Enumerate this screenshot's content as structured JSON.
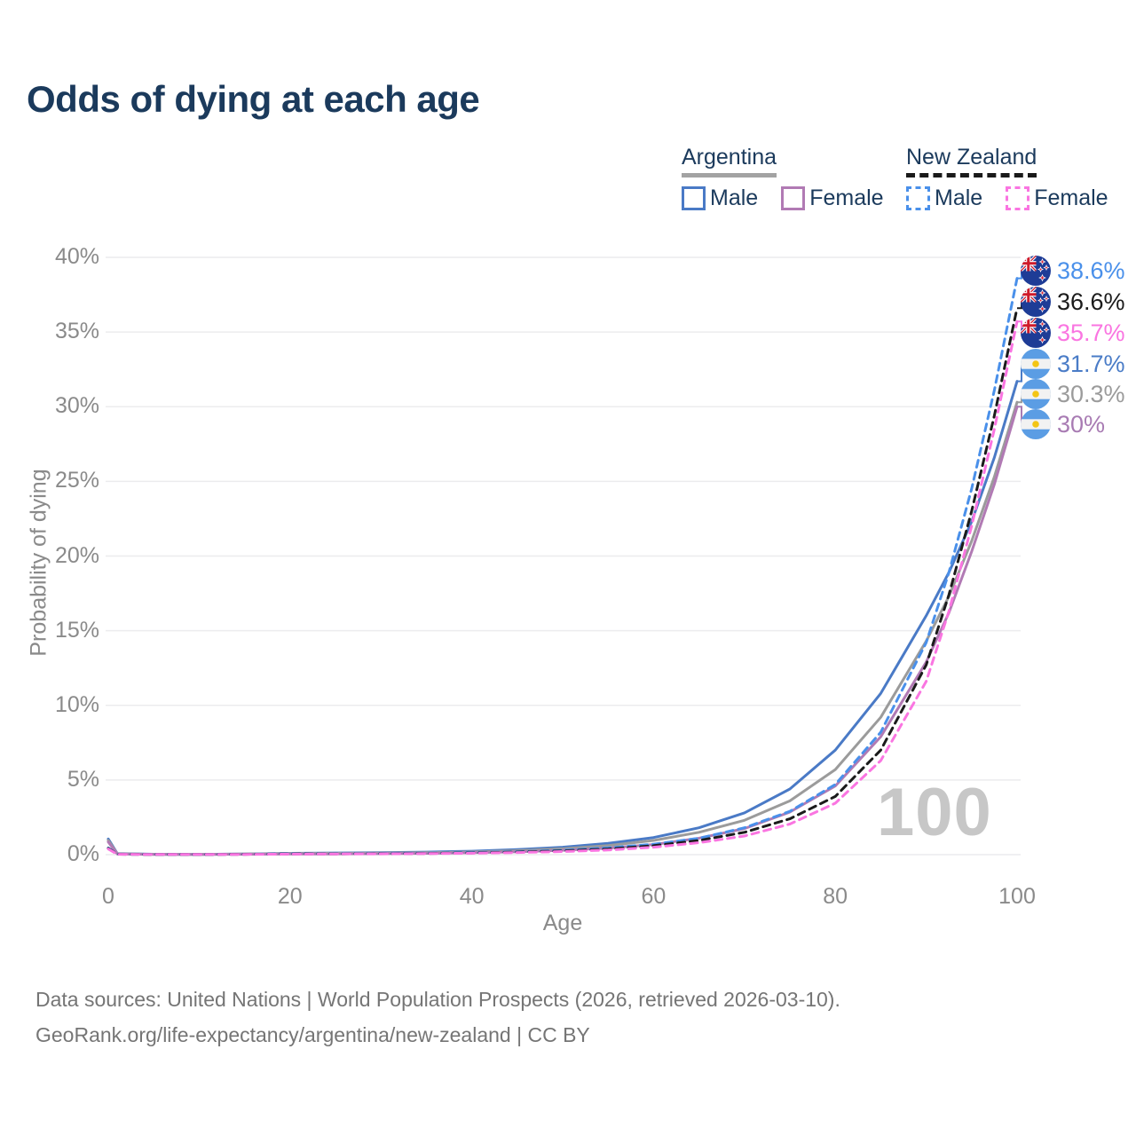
{
  "title": "Odds of dying at each age",
  "colors": {
    "title_navy": "#1b3a5c",
    "axis_gray": "#8a8a8a",
    "grid_gray": "#ececee",
    "footer_gray": "#757575",
    "watermark_gray": "#c7c7c7",
    "argentina_underline": "#a3a3a3",
    "new_zealand_underline": "#1a1a1a"
  },
  "legend": {
    "groups": [
      {
        "label": "Argentina",
        "line_style": "solid",
        "line_color": "#a3a3a3",
        "items": [
          {
            "label": "Male",
            "color": "#4a7ac6",
            "dash": false
          },
          {
            "label": "Female",
            "color": "#b17ab4",
            "dash": false
          }
        ]
      },
      {
        "label": "New Zealand",
        "line_style": "dashed",
        "line_color": "#1a1a1a",
        "items": [
          {
            "label": "Male",
            "color": "#4a90ea",
            "dash": true
          },
          {
            "label": "Female",
            "color": "#fa75e1",
            "dash": true
          }
        ]
      }
    ]
  },
  "chart_data": {
    "type": "line",
    "title": "Odds of dying at each age",
    "xlabel": "Age",
    "ylabel": "Probability of dying",
    "xlim": [
      0,
      100
    ],
    "ylim": [
      0,
      40
    ],
    "grid": "horizontal-only",
    "watermark": "100",
    "xticks": [
      0,
      20,
      40,
      60,
      80,
      100
    ],
    "ytick_labels": [
      "0%",
      "5%",
      "10%",
      "15%",
      "20%",
      "25%",
      "30%",
      "35%",
      "40%"
    ],
    "ages": [
      0,
      1,
      5,
      10,
      15,
      20,
      25,
      30,
      35,
      40,
      45,
      50,
      55,
      60,
      65,
      70,
      75,
      80,
      85,
      90,
      92.5,
      95,
      97.5,
      100
    ],
    "series": [
      {
        "name": "Argentina Male",
        "country": "Argentina",
        "sex": "Male",
        "color": "#4a7ac6",
        "dash": false,
        "values": [
          1.05,
          0.07,
          0.03,
          0.02,
          0.05,
          0.09,
          0.11,
          0.13,
          0.17,
          0.23,
          0.34,
          0.5,
          0.76,
          1.15,
          1.8,
          2.8,
          4.4,
          7.0,
          10.8,
          16.0,
          18.9,
          22.3,
          26.6,
          31.7
        ]
      },
      {
        "name": "Argentina Both sexes",
        "country": "Argentina",
        "sex": "Both",
        "color": "#9b9b9b",
        "dash": false,
        "values": [
          0.95,
          0.06,
          0.025,
          0.018,
          0.04,
          0.07,
          0.09,
          0.1,
          0.13,
          0.18,
          0.27,
          0.4,
          0.61,
          0.95,
          1.5,
          2.3,
          3.6,
          5.7,
          9.2,
          14.3,
          17.3,
          21.0,
          25.3,
          30.3
        ]
      },
      {
        "name": "Argentina Female",
        "country": "Argentina",
        "sex": "Female",
        "color": "#b17ab4",
        "dash": false,
        "values": [
          0.85,
          0.05,
          0.02,
          0.015,
          0.025,
          0.04,
          0.05,
          0.065,
          0.09,
          0.13,
          0.19,
          0.29,
          0.44,
          0.68,
          1.1,
          1.75,
          2.85,
          4.6,
          7.9,
          12.9,
          16.2,
          20.3,
          24.8,
          30.0
        ]
      },
      {
        "name": "New Zealand Male",
        "country": "New Zealand",
        "sex": "Male",
        "color": "#4a90ea",
        "dash": true,
        "values": [
          0.45,
          0.03,
          0.015,
          0.012,
          0.03,
          0.06,
          0.07,
          0.08,
          0.1,
          0.14,
          0.2,
          0.3,
          0.46,
          0.7,
          1.1,
          1.8,
          2.9,
          4.7,
          8.2,
          14.2,
          18.9,
          24.5,
          31.1,
          38.6
        ]
      },
      {
        "name": "New Zealand Both sexes",
        "country": "New Zealand",
        "sex": "Both",
        "color": "#1b1b1b",
        "dash": true,
        "values": [
          0.42,
          0.028,
          0.013,
          0.01,
          0.025,
          0.05,
          0.055,
          0.065,
          0.085,
          0.115,
          0.17,
          0.25,
          0.38,
          0.6,
          0.95,
          1.5,
          2.4,
          3.9,
          7.0,
          12.7,
          17.4,
          23.0,
          29.4,
          36.6
        ]
      },
      {
        "name": "New Zealand Female",
        "country": "New Zealand",
        "sex": "Female",
        "color": "#fa75e1",
        "dash": true,
        "values": [
          0.38,
          0.025,
          0.012,
          0.01,
          0.02,
          0.035,
          0.045,
          0.055,
          0.07,
          0.095,
          0.14,
          0.21,
          0.31,
          0.5,
          0.8,
          1.25,
          2.05,
          3.45,
          6.3,
          11.6,
          16.3,
          22.0,
          28.5,
          35.7
        ]
      }
    ],
    "end_labels": [
      {
        "value": "38.6%",
        "flag": "nz",
        "color": "#4a90ea",
        "series_index": 3
      },
      {
        "value": "36.6%",
        "flag": "nz",
        "color": "#1b1b1b",
        "series_index": 4
      },
      {
        "value": "35.7%",
        "flag": "nz",
        "color": "#fa75e1",
        "series_index": 5
      },
      {
        "value": "31.7%",
        "flag": "ar",
        "color": "#4a7cc7",
        "series_index": 0
      },
      {
        "value": "30.3%",
        "flag": "ar",
        "color": "#9b9b9b",
        "series_index": 1
      },
      {
        "value": "30%",
        "flag": "ar",
        "color": "#a87bb3",
        "series_index": 2
      }
    ]
  },
  "footer": {
    "line1": "Data sources: United Nations | World Population Prospects (2026, retrieved 2026-03-10).",
    "line2": "GeoRank.org/life-expectancy/argentina/new-zealand | CC BY"
  }
}
